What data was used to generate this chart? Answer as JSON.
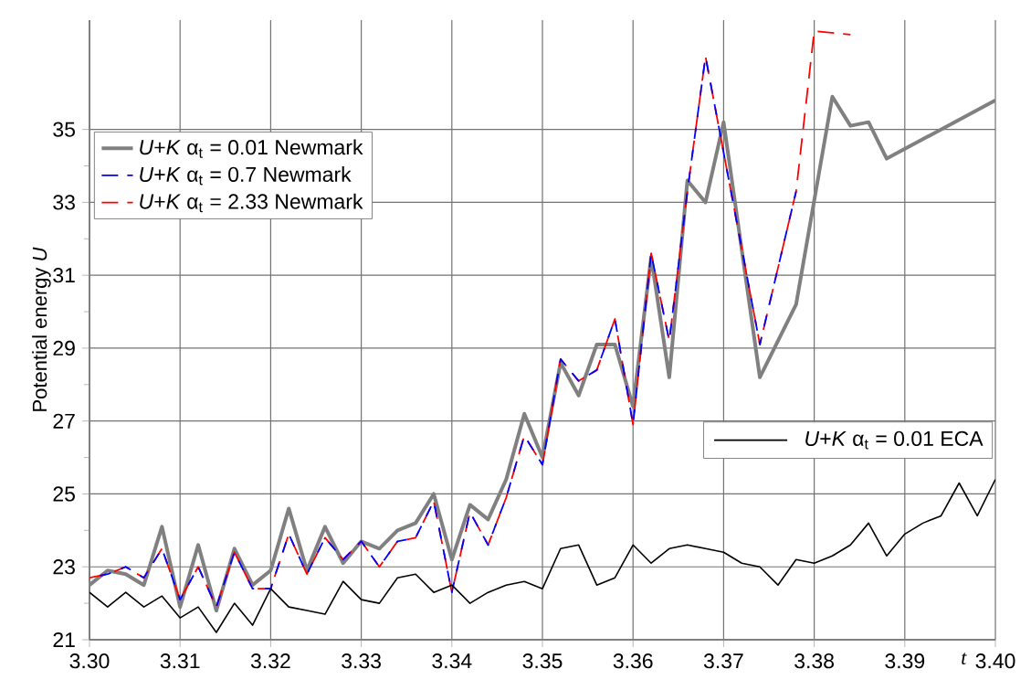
{
  "chart_data": {
    "type": "line",
    "xlabel": "t",
    "ylabel": "Potential energy *U*",
    "x": [
      3.3,
      3.302,
      3.304,
      3.306,
      3.308,
      3.31,
      3.312,
      3.314,
      3.316,
      3.318,
      3.32,
      3.322,
      3.324,
      3.326,
      3.328,
      3.33,
      3.332,
      3.334,
      3.336,
      3.338,
      3.34,
      3.342,
      3.344,
      3.346,
      3.348,
      3.35,
      3.352,
      3.354,
      3.356,
      3.358,
      3.36,
      3.362,
      3.364,
      3.366,
      3.368,
      3.37,
      3.372,
      3.374,
      3.376,
      3.378,
      3.38,
      3.382,
      3.384,
      3.386,
      3.388,
      3.39,
      3.392,
      3.394,
      3.396,
      3.398,
      3.4
    ],
    "series": [
      {
        "name": "*U*+*K* α$_{t}$ = 0.01 Newmark",
        "color": "#808080",
        "line_style": "solid",
        "x": [
          3.3,
          3.302,
          3.304,
          3.306,
          3.308,
          3.31,
          3.312,
          3.314,
          3.316,
          3.318,
          3.32,
          3.322,
          3.324,
          3.326,
          3.328,
          3.33,
          3.332,
          3.334,
          3.336,
          3.338,
          3.34,
          3.342,
          3.344,
          3.346,
          3.348,
          3.35,
          3.352,
          3.354,
          3.356,
          3.358,
          3.36,
          3.362,
          3.364,
          3.366,
          3.368,
          3.37,
          3.374,
          3.378,
          3.382,
          3.384,
          3.386,
          3.388,
          3.4
        ],
        "values": [
          22.5,
          22.9,
          22.8,
          22.5,
          24.1,
          21.9,
          23.6,
          21.8,
          23.5,
          22.5,
          22.9,
          24.6,
          22.9,
          24.1,
          23.1,
          23.7,
          23.5,
          24.0,
          24.2,
          25.0,
          23.2,
          24.7,
          24.3,
          25.4,
          27.2,
          26.0,
          28.6,
          27.7,
          29.1,
          29.1,
          27.4,
          31.5,
          28.2,
          33.6,
          33.0,
          35.2,
          28.2,
          30.2,
          35.9,
          35.1,
          35.2,
          34.2,
          35.8
        ]
      },
      {
        "name": "*U*+*K* α$_{t}$ = 0.7 Newmark",
        "color": "#0000ff",
        "line_style": "dashed",
        "x": [
          3.3,
          3.302,
          3.304,
          3.306,
          3.308,
          3.31,
          3.312,
          3.314,
          3.316,
          3.318,
          3.32,
          3.322,
          3.324,
          3.326,
          3.328,
          3.33,
          3.332,
          3.334,
          3.336,
          3.338,
          3.34,
          3.342,
          3.344,
          3.346,
          3.348,
          3.35,
          3.352,
          3.354,
          3.356,
          3.358,
          3.36,
          3.362,
          3.364,
          3.366,
          3.368,
          3.374,
          3.378
        ],
        "values": [
          22.7,
          22.8,
          23.0,
          22.7,
          23.5,
          22.1,
          23.0,
          21.9,
          23.4,
          22.4,
          22.4,
          23.9,
          22.8,
          23.8,
          23.2,
          23.7,
          23.0,
          23.7,
          23.8,
          24.8,
          22.3,
          24.5,
          23.6,
          24.9,
          26.6,
          25.8,
          28.7,
          28.1,
          28.4,
          29.8,
          26.9,
          31.6,
          29.2,
          33.3,
          37.0,
          29.1,
          33.3
        ]
      },
      {
        "name": "*U*+*K* α$_{t}$ = 2.33 Newmark",
        "color": "#ff0000",
        "line_style": "dashed",
        "x": [
          3.3,
          3.302,
          3.304,
          3.306,
          3.308,
          3.31,
          3.312,
          3.314,
          3.316,
          3.318,
          3.32,
          3.322,
          3.324,
          3.326,
          3.328,
          3.33,
          3.332,
          3.334,
          3.336,
          3.338,
          3.34,
          3.342,
          3.344,
          3.346,
          3.348,
          3.35,
          3.352,
          3.354,
          3.356,
          3.358,
          3.36,
          3.362,
          3.364,
          3.366,
          3.368,
          3.374,
          3.378,
          3.38,
          3.384
        ],
        "values": [
          22.7,
          22.8,
          23.0,
          22.7,
          23.5,
          22.1,
          23.0,
          21.9,
          23.4,
          22.4,
          22.4,
          23.9,
          22.8,
          23.8,
          23.2,
          23.7,
          23.0,
          23.7,
          23.8,
          24.8,
          22.3,
          24.5,
          23.6,
          24.9,
          26.6,
          25.8,
          28.7,
          28.1,
          28.4,
          29.8,
          26.9,
          31.6,
          29.2,
          33.3,
          37.0,
          29.1,
          33.3,
          37.7,
          37.6
        ]
      },
      {
        "name": "*U*+*K* α$_{t}$ = 0.01 ECA",
        "color": "#000000",
        "line_style": "solid",
        "values": [
          22.3,
          21.9,
          22.3,
          21.9,
          22.2,
          21.6,
          21.9,
          21.2,
          22.0,
          21.4,
          22.4,
          21.9,
          21.8,
          21.7,
          22.6,
          22.1,
          22.0,
          22.7,
          22.8,
          22.3,
          22.5,
          22.0,
          22.3,
          22.5,
          22.6,
          22.4,
          23.5,
          23.6,
          22.5,
          22.7,
          23.6,
          23.1,
          23.5,
          23.6,
          23.5,
          23.4,
          23.1,
          23.0,
          22.5,
          23.2,
          23.1,
          23.3,
          23.6,
          24.2,
          23.3,
          23.9,
          24.2,
          24.4,
          25.3,
          24.4,
          25.4
        ]
      }
    ],
    "xlim": [
      3.3,
      3.4
    ],
    "xticks": [
      {
        "value": 3.3,
        "label": "3.30"
      },
      {
        "value": 3.31,
        "label": "3.31"
      },
      {
        "value": 3.32,
        "label": "3.32"
      },
      {
        "value": 3.33,
        "label": "3.33"
      },
      {
        "value": 3.34,
        "label": "3.34"
      },
      {
        "value": 3.35,
        "label": "3.35"
      },
      {
        "value": 3.36,
        "label": "3.36"
      },
      {
        "value": 3.37,
        "label": "3.37"
      },
      {
        "value": 3.38,
        "label": "3.38"
      },
      {
        "value": 3.39,
        "label": "3.39"
      },
      {
        "value": 3.4,
        "label": "3.40"
      }
    ],
    "ylim": [
      21,
      38
    ],
    "yticks": [
      21,
      {
        "value": 22,
        "label": null
      },
      23,
      {
        "value": 24,
        "label": null
      },
      25,
      {
        "value": 26,
        "label": null
      },
      27,
      {
        "value": 28,
        "label": null
      },
      29,
      {
        "value": 30,
        "label": null
      },
      31,
      {
        "value": 32,
        "label": null
      },
      33,
      {
        "value": 34,
        "label": null
      },
      35
    ],
    "grid": true,
    "legend": "top left",
    "marker": "none"
  }
}
